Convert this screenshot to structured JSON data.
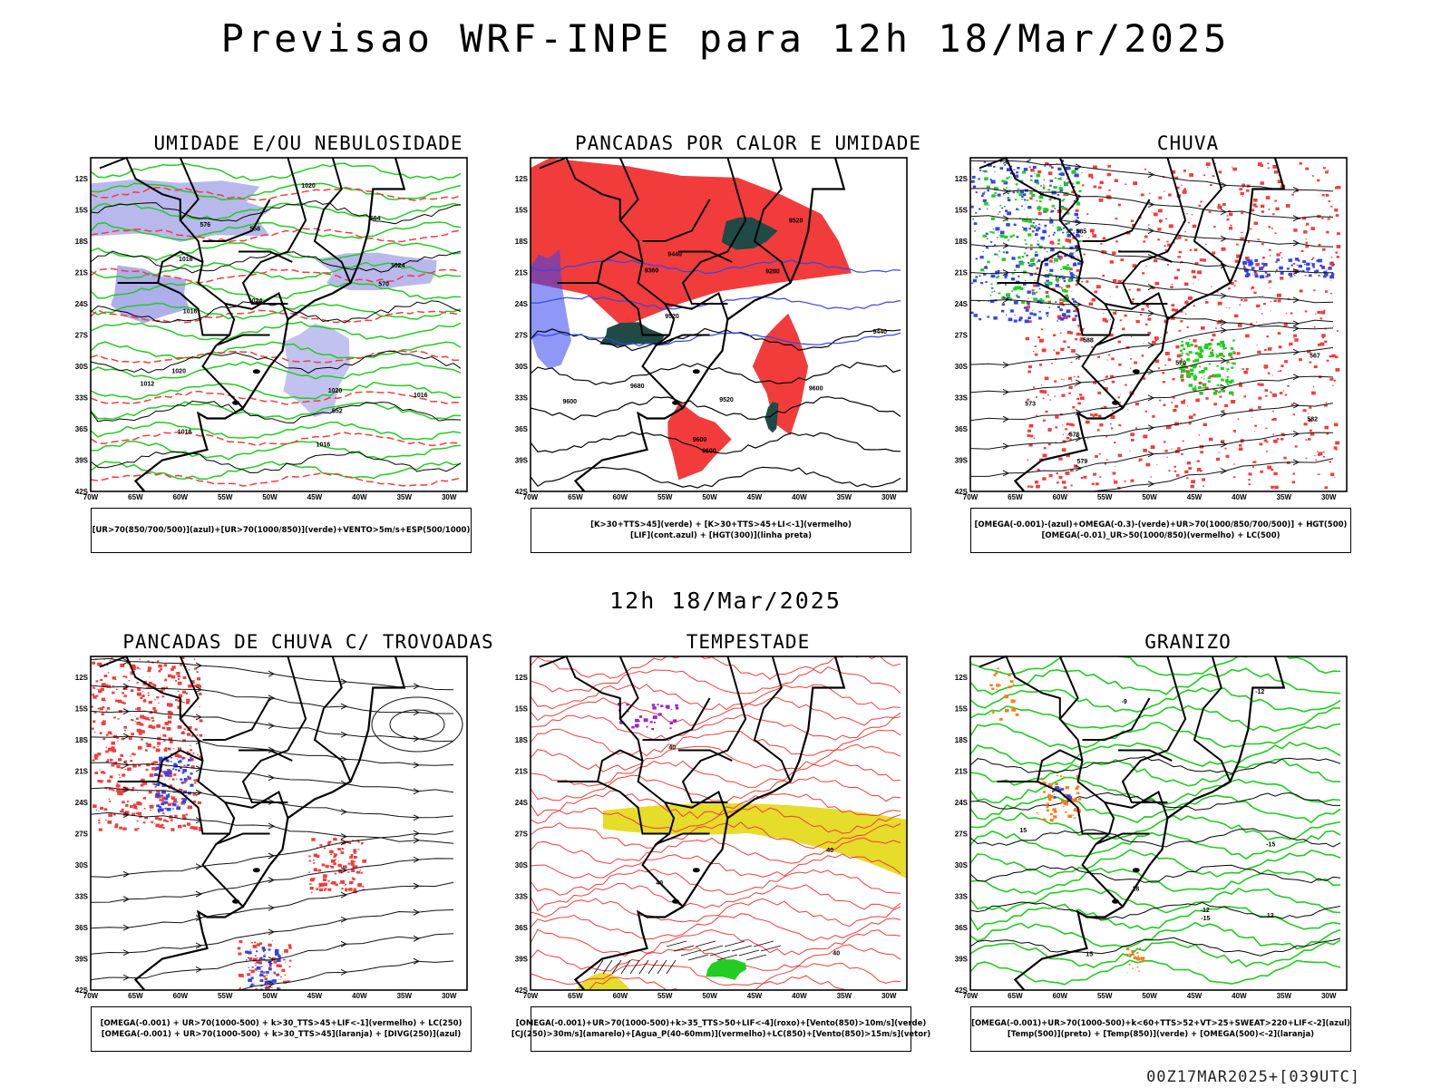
{
  "title": "Previsao WRF-INPE  para 12h 18/Mar/2025",
  "subtitle": "12h 18/Mar/2025",
  "footer": "00Z17MAR2025+[039UTC]",
  "lat_labels": [
    "12S",
    "15S",
    "18S",
    "21S",
    "24S",
    "27S",
    "30S",
    "33S",
    "36S",
    "39S",
    "42S"
  ],
  "lon_labels": [
    "70W",
    "65W",
    "60W",
    "55W",
    "50W",
    "45W",
    "40W",
    "35W",
    "30W"
  ],
  "colors": {
    "red": "#f23c3c",
    "green": "#22cc22",
    "blue": "#3344ee",
    "lavender": "#9a9ae6",
    "darkteal": "#1f4a46",
    "yellow": "#e6dc2a",
    "orange": "#ff7a1a",
    "purple": "#9a22cc"
  },
  "panels": [
    {
      "title": "UMIDADE E/OU NEBULOSIDADE",
      "legend": [
        "[UR>70(850/700/500)](azul)+[UR>70(1000/850)](verde)+VENTO>5m/s+ESP(500/1000)"
      ],
      "contour_labels": [
        "1016",
        "1020",
        "1012",
        "1016",
        "1016",
        "1016",
        "1024",
        "1020",
        "1016",
        "1020",
        "1024",
        "576",
        "570",
        "564",
        "558",
        "552"
      ]
    },
    {
      "title": "PANCADAS POR CALOR E UMIDADE",
      "legend": [
        "[K>30+TTS>45](verde) + [K>30+TTS>45+LI<-1](vermelho)",
        "[LIF](cont.azul) + [HGT(300)](linha preta)"
      ],
      "contour_labels": [
        "9680",
        "9600",
        "9600",
        "9520",
        "9600",
        "9520",
        "9440",
        "9360",
        "9280",
        "9440",
        "9520",
        "9600"
      ]
    },
    {
      "title": "CHUVA",
      "legend": [
        "[OMEGA(-0.001)-(azul)+OMEGA(-0.3)-(verde)+UR>70(1000/850/700/500)] + HGT(500)",
        "[OMEGA(-0.01)_UR>50(1000/850)(vermelho) + LC(500)"
      ],
      "contour_labels": [
        "588",
        "585",
        "582",
        "579",
        "576",
        "573",
        "570",
        "567"
      ]
    },
    {
      "title": "PANCADAS DE CHUVA C/ TROVOADAS",
      "legend": [
        "[OMEGA(-0.001) + UR>70(1000-500) + k>30_TTS>45+LIF<-1](vermelho) + LC(250)",
        "[OMEGA(-0.001) + UR>70(1000-500) + k>30_TTS>45](laranja) + [DIVG(250)](azul)"
      ],
      "contour_labels": []
    },
    {
      "title": "TEMPESTADE",
      "legend": [
        "[OMEGA(-0.001)+UR>70(1000-500)+k>35_TTS>50+LIF<-4](roxo)+[Vento(850)>10m/s](verde)",
        "[CJ(250)>30m/s](amarelo)+[Agua_P(40-60mm)](vermelho)+LC(850)+[Vento(850)>15m/s](vetor)"
      ],
      "contour_labels": [
        "40",
        "40",
        "40",
        "40"
      ]
    },
    {
      "title": "GRANIZO",
      "legend": [
        "[OMEGA(-0.001)+UR>70(1000-500)+k<60+TTS>52+VT>25+SWEAT>220+LIF<-2](azul)",
        "[Temp(500)](preto) + [Temp(850)](verde) + [OMEGA(500)<-2](laranja)"
      ],
      "contour_labels": [
        "-9",
        "-12",
        "-12",
        "-15",
        "-15",
        "12",
        "15",
        "15",
        "18"
      ]
    }
  ]
}
